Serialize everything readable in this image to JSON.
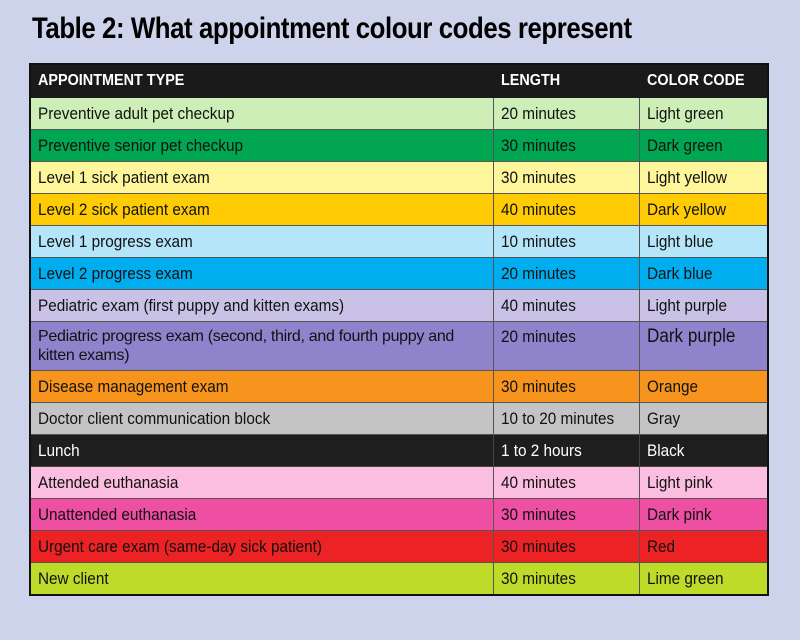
{
  "title": "Table 2: What appointment colour codes represent",
  "headers": {
    "type": "APPOINTMENT TYPE",
    "length": "LENGTH",
    "color": "COLOR CODE"
  },
  "rows": [
    {
      "type": "Preventive adult pet checkup",
      "length": "20 minutes",
      "color": "Light green",
      "bg": "#cdeeb6"
    },
    {
      "type": "Preventive senior pet checkup",
      "length": "30 minutes",
      "color": "Dark green",
      "bg": "#00a651"
    },
    {
      "type": "Level 1 sick patient exam",
      "length": "30 minutes",
      "color": "Light yellow",
      "bg": "#fff59a"
    },
    {
      "type": "Level 2 sick patient exam",
      "length": "40 minutes",
      "color": "Dark yellow",
      "bg": "#ffcb05"
    },
    {
      "type": "Level 1 progress exam",
      "length": "10 minutes",
      "color": "Light blue",
      "bg": "#b5e5f8"
    },
    {
      "type": "Level 2 progress exam",
      "length": "20 minutes",
      "color": "Dark blue",
      "bg": "#00aeef"
    },
    {
      "type": "Pediatric exam (first puppy and kitten exams)",
      "length": "40 minutes",
      "color": "Light purple",
      "bg": "#c9c2e6"
    },
    {
      "type": "Pediatric progress exam (second, third, and fourth puppy and kitten exams)",
      "length": "20 minutes",
      "color": "Dark purple",
      "bg": "#8f83cc"
    },
    {
      "type": "Disease management exam",
      "length": "30 minutes",
      "color": "Orange",
      "bg": "#f7941d"
    },
    {
      "type": "Doctor client communication block",
      "length": "10 to 20 minutes",
      "color": "Gray",
      "bg": "#c4c4c4"
    },
    {
      "type": "Lunch",
      "length": "1 to 2 hours",
      "color": "Black",
      "bg": "#1e1e1e"
    },
    {
      "type": "Attended euthanasia",
      "length": "40 minutes",
      "color": "Light pink",
      "bg": "#fbbde0"
    },
    {
      "type": "Unattended euthanasia",
      "length": "30 minutes",
      "color": "Dark pink",
      "bg": "#ee4fa2"
    },
    {
      "type": "Urgent care exam (same-day sick patient)",
      "length": "30 minutes",
      "color": "Red",
      "bg": "#ed2224"
    },
    {
      "type": "New client",
      "length": "30 minutes",
      "color": "Lime green",
      "bg": "#bfdb2a"
    }
  ]
}
